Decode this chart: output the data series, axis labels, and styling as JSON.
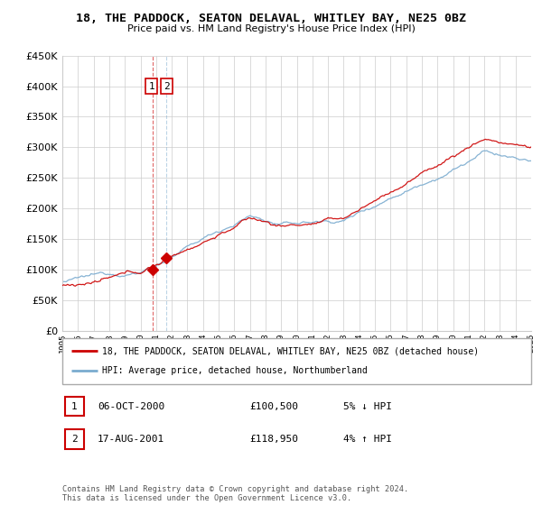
{
  "title": "18, THE PADDOCK, SEATON DELAVAL, WHITLEY BAY, NE25 0BZ",
  "subtitle": "Price paid vs. HM Land Registry's House Price Index (HPI)",
  "ylim": [
    0,
    450000
  ],
  "yticks": [
    0,
    50000,
    100000,
    150000,
    200000,
    250000,
    300000,
    350000,
    400000,
    450000
  ],
  "sale1_date": 2000.76,
  "sale1_price": 100500,
  "sale2_date": 2001.63,
  "sale2_price": 118950,
  "legend_line1": "18, THE PADDOCK, SEATON DELAVAL, WHITLEY BAY, NE25 0BZ (detached house)",
  "legend_line2": "HPI: Average price, detached house, Northumberland",
  "table_row1": [
    "1",
    "06-OCT-2000",
    "£100,500",
    "5% ↓ HPI"
  ],
  "table_row2": [
    "2",
    "17-AUG-2001",
    "£118,950",
    "4% ↑ HPI"
  ],
  "footnote": "Contains HM Land Registry data © Crown copyright and database right 2024.\nThis data is licensed under the Open Government Licence v3.0.",
  "red_color": "#cc0000",
  "blue_color": "#7aabcf",
  "xmin": 1995,
  "xmax": 2025
}
